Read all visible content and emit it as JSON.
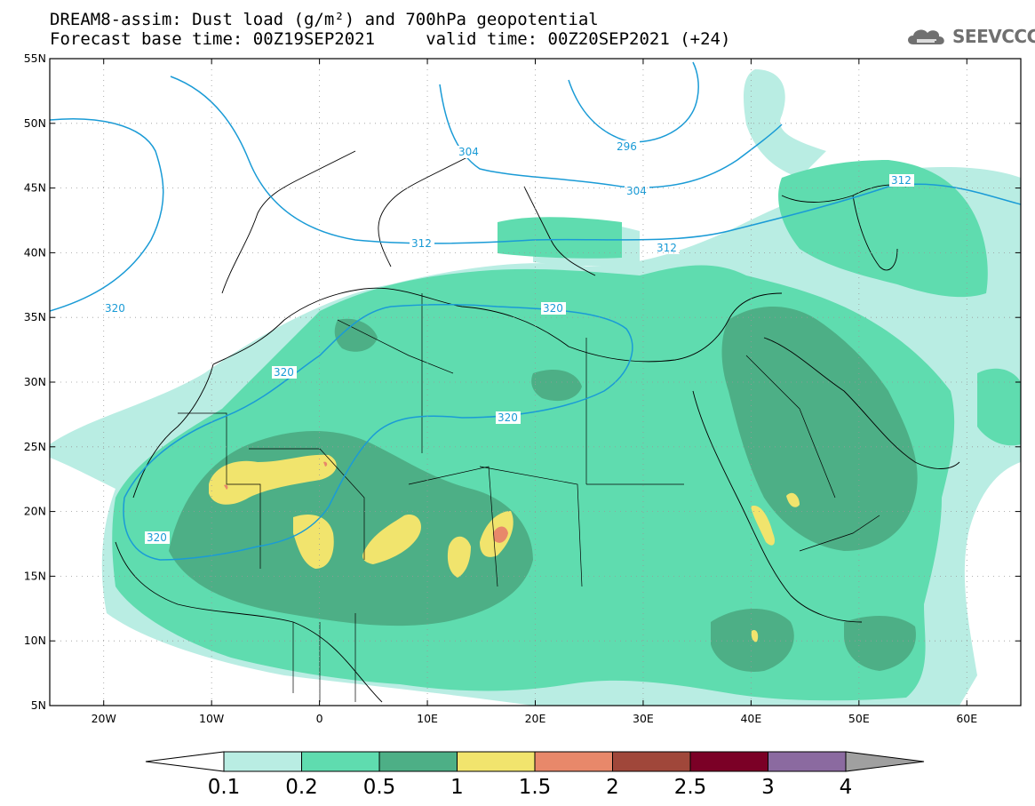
{
  "title": {
    "line1": "DREAM8-assim: Dust load (g/m²) and 700hPa geopotential",
    "line2": "Forecast base time: 00Z19SEP2021     valid time: 00Z20SEP2021 (+24)"
  },
  "logo": {
    "text": "SEEVCCC",
    "icon": "cloud-icon"
  },
  "map": {
    "lon_range": [
      -25,
      65
    ],
    "lat_range": [
      5,
      55
    ],
    "lat_ticks": [
      "55N",
      "50N",
      "45N",
      "40N",
      "35N",
      "30N",
      "25N",
      "20N",
      "15N",
      "10N",
      "5N"
    ],
    "lon_ticks": [
      "20W",
      "10W",
      "0",
      "10E",
      "20E",
      "30E",
      "40E",
      "50E",
      "60E"
    ],
    "contour_labels": [
      "320",
      "320",
      "320",
      "320",
      "320",
      "312",
      "312",
      "312",
      "304",
      "304",
      "296"
    ],
    "colors": {
      "contour": "#1a9bd6",
      "bin1": "#b9ede3",
      "bin2": "#5fdcaf",
      "bin3": "#4daf86",
      "bin4": "#f1e46d",
      "bin5": "#e8886a",
      "bin6": "#a0473a",
      "bin7": "#7b0026",
      "bin8": "#8b6aa0"
    }
  },
  "colorbar": {
    "labels": [
      "0.1",
      "0.2",
      "0.5",
      "1",
      "1.5",
      "2",
      "2.5",
      "3",
      "4"
    ],
    "colors": [
      "#b9ede3",
      "#5fdcaf",
      "#4daf86",
      "#f1e46d",
      "#e8886a",
      "#a0473a",
      "#7b0026",
      "#8b6aa0"
    ],
    "under_color": "#ffffff",
    "over_color": "#a0a0a0"
  }
}
